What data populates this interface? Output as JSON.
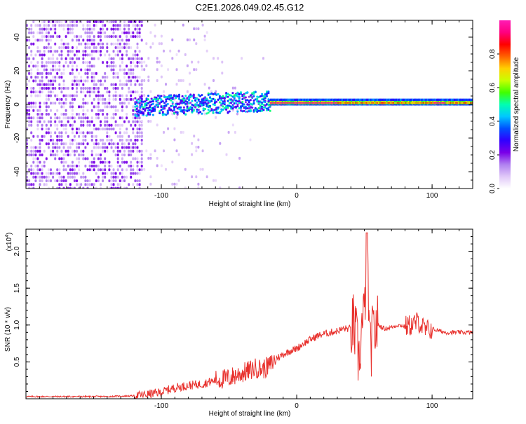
{
  "title": "C2E1.2026.049.02.45.G12",
  "chart_data": [
    {
      "type": "heatmap",
      "title": "C2E1.2026.049.02.45.G12",
      "xlabel": "Height of straight line (km)",
      "ylabel": "Frequency (Hz)",
      "xlim": [
        -200,
        130
      ],
      "ylim": [
        -50,
        50
      ],
      "x_ticks": [
        -100,
        0,
        100
      ],
      "y_ticks": [
        -40,
        -20,
        0,
        20,
        40
      ],
      "colorbar": {
        "label": "Normalized spectral amplitude",
        "range": [
          0,
          1
        ],
        "ticks": [
          0.0,
          0.2,
          0.4,
          0.6,
          0.8
        ],
        "tick_labels": [
          "0.0",
          "0.2",
          "0.4",
          "0.6",
          "0.8"
        ],
        "colors": [
          "#ffffff",
          "#e0c8f8",
          "#b080f0",
          "#7a00e8",
          "#3000ff",
          "#0050ff",
          "#00c8ff",
          "#00ffb0",
          "#40ff00",
          "#c8ff00",
          "#ffd000",
          "#ff6000",
          "#ff0000",
          "#ff0080",
          "#ff1cb4"
        ]
      },
      "features": [
        {
          "name": "noise",
          "x_range": [
            -200,
            -115
          ],
          "freq_range": [
            -50,
            50
          ],
          "amplitude": 0.12
        },
        {
          "name": "turbulent-echo",
          "x_range": [
            -120,
            -20
          ],
          "freq_center": 0,
          "freq_width": 6,
          "amplitude": 0.35
        },
        {
          "name": "steady-echo",
          "x_range": [
            -20,
            130
          ],
          "freq_center": 0.5,
          "freq_width": 2,
          "amplitude": 0.95
        }
      ]
    },
    {
      "type": "line",
      "xlabel": "Height of straight line (km)",
      "ylabel": "SNR (10 * v/v)",
      "scale_label": "(x10",
      "scale_exp": "4",
      "scale_close": ")",
      "xlim": [
        -200,
        130
      ],
      "ylim": [
        0,
        2.3
      ],
      "x_ticks": [
        -100,
        0,
        100
      ],
      "y_ticks": [
        0.5,
        1.0,
        1.5,
        2.0
      ],
      "y_tick_labels": [
        "0.5",
        "1.0",
        "1.5",
        "2.0"
      ],
      "series": [
        {
          "name": "SNR",
          "color": "#e8302c",
          "x": [
            -200,
            -180,
            -160,
            -140,
            -120,
            -110,
            -100,
            -90,
            -80,
            -70,
            -60,
            -50,
            -45,
            -40,
            -35,
            -30,
            -25,
            -20,
            -15,
            -10,
            -5,
            0,
            5,
            10,
            15,
            20,
            25,
            30,
            35,
            40,
            42,
            44,
            46,
            48,
            50,
            52,
            54,
            56,
            58,
            60,
            65,
            70,
            75,
            80,
            85,
            90,
            95,
            100,
            105,
            110,
            115,
            120,
            125,
            130
          ],
          "y": [
            0.03,
            0.03,
            0.03,
            0.03,
            0.04,
            0.06,
            0.09,
            0.15,
            0.18,
            0.2,
            0.25,
            0.28,
            0.32,
            0.35,
            0.38,
            0.42,
            0.4,
            0.45,
            0.55,
            0.6,
            0.65,
            0.68,
            0.75,
            0.8,
            0.85,
            0.88,
            0.9,
            0.92,
            0.95,
            0.95,
            1.0,
            0.8,
            0.5,
            0.95,
            1.1,
            2.25,
            0.6,
            0.85,
            0.95,
            1.0,
            0.95,
            0.97,
            1.0,
            0.98,
            1.0,
            1.05,
            0.92,
            0.95,
            0.92,
            0.9,
            0.9,
            0.9,
            0.9,
            0.9
          ]
        }
      ]
    }
  ]
}
